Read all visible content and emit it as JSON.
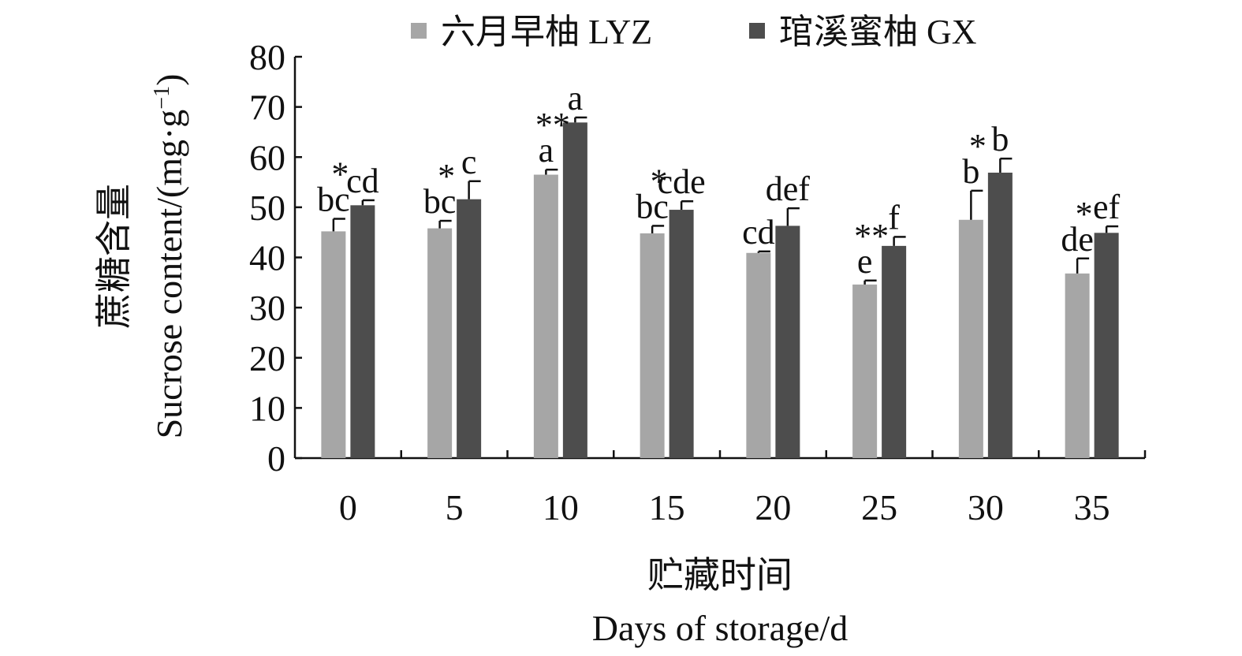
{
  "chart_data": {
    "type": "bar",
    "ylabel_cn": "蔗糖含量",
    "ylabel_en": "Sucrose content/(mg·g",
    "ylabel_en_sup": "−1",
    "ylabel_en_close": ")",
    "xlabel_cn": "贮藏时间",
    "xlabel_en": "Days of storage/d",
    "categories": [
      "0",
      "5",
      "10",
      "15",
      "20",
      "25",
      "30",
      "35"
    ],
    "ylim": [
      0,
      80
    ],
    "yticks": [
      "0",
      "10",
      "20",
      "30",
      "40",
      "50",
      "60",
      "70",
      "80"
    ],
    "legend_position": "top-center",
    "series": [
      {
        "name": "六月早柚 LYZ",
        "color": "#a6a6a6",
        "values": [
          45.2,
          45.8,
          56.5,
          44.8,
          40.9,
          34.6,
          47.5,
          36.8
        ],
        "errors": [
          2.5,
          1.5,
          1.0,
          1.5,
          0.3,
          0.8,
          5.8,
          3.0
        ],
        "letters": [
          "bc",
          "bc",
          "a",
          "bc",
          "cd",
          "e",
          "b",
          "de"
        ]
      },
      {
        "name": "琯溪蜜柚 GX",
        "color": "#4d4d4d",
        "values": [
          50.4,
          51.6,
          66.9,
          49.5,
          46.3,
          42.3,
          56.9,
          44.9
        ],
        "errors": [
          1.0,
          3.6,
          1.0,
          1.7,
          3.5,
          1.8,
          2.8,
          1.3
        ],
        "letters": [
          "cd",
          "c",
          "a",
          "cde",
          "def",
          "f",
          "b",
          "ef"
        ]
      }
    ],
    "significance": [
      "*",
      "*",
      "**",
      "*",
      "",
      "**",
      "*",
      "*"
    ]
  }
}
